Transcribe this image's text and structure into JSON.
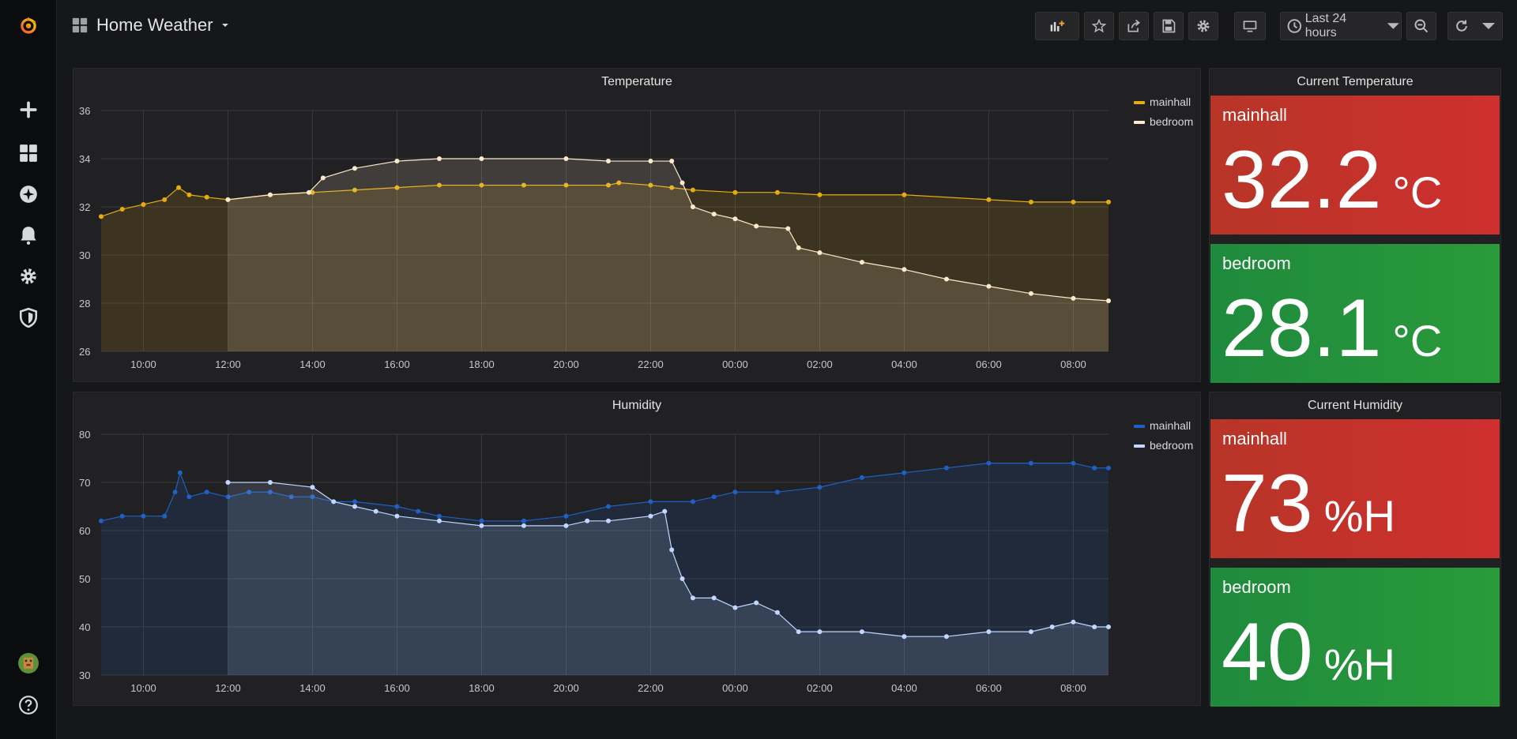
{
  "dashboard": {
    "title": "Home Weather"
  },
  "toolbar": {
    "time_range": "Last 24 hours"
  },
  "sidebar": {
    "items": [
      {
        "name": "create",
        "icon": "plus-icon"
      },
      {
        "name": "dashboards",
        "icon": "grid-icon"
      },
      {
        "name": "explore",
        "icon": "compass-icon"
      },
      {
        "name": "alerting",
        "icon": "bell-icon"
      },
      {
        "name": "configuration",
        "icon": "gear-icon"
      },
      {
        "name": "server-admin",
        "icon": "shield-icon"
      }
    ]
  },
  "colors": {
    "mainhall_temp": "#e5ac0e",
    "bedroom_temp": "#fceaca",
    "mainhall_hum": "#1f60c4",
    "bedroom_hum": "#c0d8ff",
    "stat_red": "#c4312f",
    "stat_green": "#248c3a"
  },
  "panels": {
    "temperature": {
      "title": "Temperature",
      "legend": [
        "mainhall",
        "bedroom"
      ],
      "yticks": [
        "36",
        "34",
        "32",
        "30",
        "28",
        "26"
      ],
      "xticks": [
        "10:00",
        "12:00",
        "14:00",
        "16:00",
        "18:00",
        "20:00",
        "22:00",
        "00:00",
        "02:00",
        "04:00",
        "06:00",
        "08:00"
      ]
    },
    "humidity": {
      "title": "Humidity",
      "legend": [
        "mainhall",
        "bedroom"
      ],
      "yticks": [
        "80",
        "70",
        "60",
        "50",
        "40",
        "30"
      ],
      "xticks": [
        "10:00",
        "12:00",
        "14:00",
        "16:00",
        "18:00",
        "20:00",
        "22:00",
        "00:00",
        "02:00",
        "04:00",
        "06:00",
        "08:00"
      ]
    },
    "current_temperature": {
      "title": "Current Temperature",
      "items": [
        {
          "name": "mainhall",
          "value": "32.2",
          "unit": "°C"
        },
        {
          "name": "bedroom",
          "value": "28.1",
          "unit": "°C"
        }
      ]
    },
    "current_humidity": {
      "title": "Current Humidity",
      "items": [
        {
          "name": "mainhall",
          "value": "73",
          "unit": "%H"
        },
        {
          "name": "bedroom",
          "value": "40",
          "unit": "%H"
        }
      ]
    }
  },
  "chart_data": [
    {
      "type": "line",
      "title": "Temperature",
      "ylim": [
        26,
        36
      ],
      "x_range": [
        "09:00",
        "08:50"
      ],
      "series": [
        {
          "name": "mainhall",
          "points": [
            [
              "09:00",
              31.6
            ],
            [
              "09:30",
              31.9
            ],
            [
              "10:00",
              32.1
            ],
            [
              "10:30",
              32.3
            ],
            [
              "10:50",
              32.8
            ],
            [
              "11:05",
              32.5
            ],
            [
              "11:30",
              32.4
            ],
            [
              "12:00",
              32.3
            ],
            [
              "13:00",
              32.5
            ],
            [
              "14:00",
              32.6
            ],
            [
              "15:00",
              32.7
            ],
            [
              "16:00",
              32.8
            ],
            [
              "17:00",
              32.9
            ],
            [
              "18:00",
              32.9
            ],
            [
              "19:00",
              32.9
            ],
            [
              "20:00",
              32.9
            ],
            [
              "21:00",
              32.9
            ],
            [
              "21:15",
              33.0
            ],
            [
              "22:00",
              32.9
            ],
            [
              "22:30",
              32.8
            ],
            [
              "23:00",
              32.7
            ],
            [
              "00:00",
              32.6
            ],
            [
              "01:00",
              32.6
            ],
            [
              "02:00",
              32.5
            ],
            [
              "04:00",
              32.5
            ],
            [
              "06:00",
              32.3
            ],
            [
              "07:00",
              32.2
            ],
            [
              "08:00",
              32.2
            ],
            [
              "08:50",
              32.2
            ]
          ]
        },
        {
          "name": "bedroom",
          "points": [
            [
              "12:00",
              32.3
            ],
            [
              "13:00",
              32.5
            ],
            [
              "13:55",
              32.6
            ],
            [
              "14:15",
              33.2
            ],
            [
              "15:00",
              33.6
            ],
            [
              "16:00",
              33.9
            ],
            [
              "17:00",
              34.0
            ],
            [
              "18:00",
              34.0
            ],
            [
              "20:00",
              34.0
            ],
            [
              "21:00",
              33.9
            ],
            [
              "22:00",
              33.9
            ],
            [
              "22:30",
              33.9
            ],
            [
              "22:45",
              33.0
            ],
            [
              "23:00",
              32.0
            ],
            [
              "23:30",
              31.7
            ],
            [
              "00:00",
              31.5
            ],
            [
              "00:30",
              31.2
            ],
            [
              "01:15",
              31.1
            ],
            [
              "01:30",
              30.3
            ],
            [
              "02:00",
              30.1
            ],
            [
              "03:00",
              29.7
            ],
            [
              "04:00",
              29.4
            ],
            [
              "05:00",
              29.0
            ],
            [
              "06:00",
              28.7
            ],
            [
              "07:00",
              28.4
            ],
            [
              "08:00",
              28.2
            ],
            [
              "08:50",
              28.1
            ]
          ]
        }
      ]
    },
    {
      "type": "line",
      "title": "Humidity",
      "ylim": [
        30,
        80
      ],
      "x_range": [
        "09:00",
        "08:50"
      ],
      "series": [
        {
          "name": "mainhall",
          "points": [
            [
              "09:00",
              62
            ],
            [
              "09:30",
              63
            ],
            [
              "10:00",
              63
            ],
            [
              "10:30",
              63
            ],
            [
              "10:45",
              68
            ],
            [
              "10:52",
              72
            ],
            [
              "11:05",
              67
            ],
            [
              "11:30",
              68
            ],
            [
              "12:00",
              67
            ],
            [
              "12:30",
              68
            ],
            [
              "13:00",
              68
            ],
            [
              "13:30",
              67
            ],
            [
              "14:00",
              67
            ],
            [
              "14:30",
              66
            ],
            [
              "15:00",
              66
            ],
            [
              "16:00",
              65
            ],
            [
              "16:30",
              64
            ],
            [
              "17:00",
              63
            ],
            [
              "18:00",
              62
            ],
            [
              "19:00",
              62
            ],
            [
              "20:00",
              63
            ],
            [
              "21:00",
              65
            ],
            [
              "22:00",
              66
            ],
            [
              "23:00",
              66
            ],
            [
              "23:30",
              67
            ],
            [
              "00:00",
              68
            ],
            [
              "01:00",
              68
            ],
            [
              "02:00",
              69
            ],
            [
              "03:00",
              71
            ],
            [
              "04:00",
              72
            ],
            [
              "05:00",
              73
            ],
            [
              "06:00",
              74
            ],
            [
              "07:00",
              74
            ],
            [
              "08:00",
              74
            ],
            [
              "08:30",
              73
            ],
            [
              "08:50",
              73
            ]
          ]
        },
        {
          "name": "bedroom",
          "points": [
            [
              "12:00",
              70
            ],
            [
              "13:00",
              70
            ],
            [
              "14:00",
              69
            ],
            [
              "14:30",
              66
            ],
            [
              "15:00",
              65
            ],
            [
              "15:30",
              64
            ],
            [
              "16:00",
              63
            ],
            [
              "17:00",
              62
            ],
            [
              "18:00",
              61
            ],
            [
              "19:00",
              61
            ],
            [
              "20:00",
              61
            ],
            [
              "20:30",
              62
            ],
            [
              "21:00",
              62
            ],
            [
              "22:00",
              63
            ],
            [
              "22:20",
              64
            ],
            [
              "22:30",
              56
            ],
            [
              "22:45",
              50
            ],
            [
              "23:00",
              46
            ],
            [
              "23:30",
              46
            ],
            [
              "00:00",
              44
            ],
            [
              "00:30",
              45
            ],
            [
              "01:00",
              43
            ],
            [
              "01:30",
              39
            ],
            [
              "02:00",
              39
            ],
            [
              "03:00",
              39
            ],
            [
              "04:00",
              38
            ],
            [
              "05:00",
              38
            ],
            [
              "06:00",
              39
            ],
            [
              "07:00",
              39
            ],
            [
              "07:30",
              40
            ],
            [
              "08:00",
              41
            ],
            [
              "08:30",
              40
            ],
            [
              "08:50",
              40
            ]
          ]
        }
      ]
    }
  ]
}
